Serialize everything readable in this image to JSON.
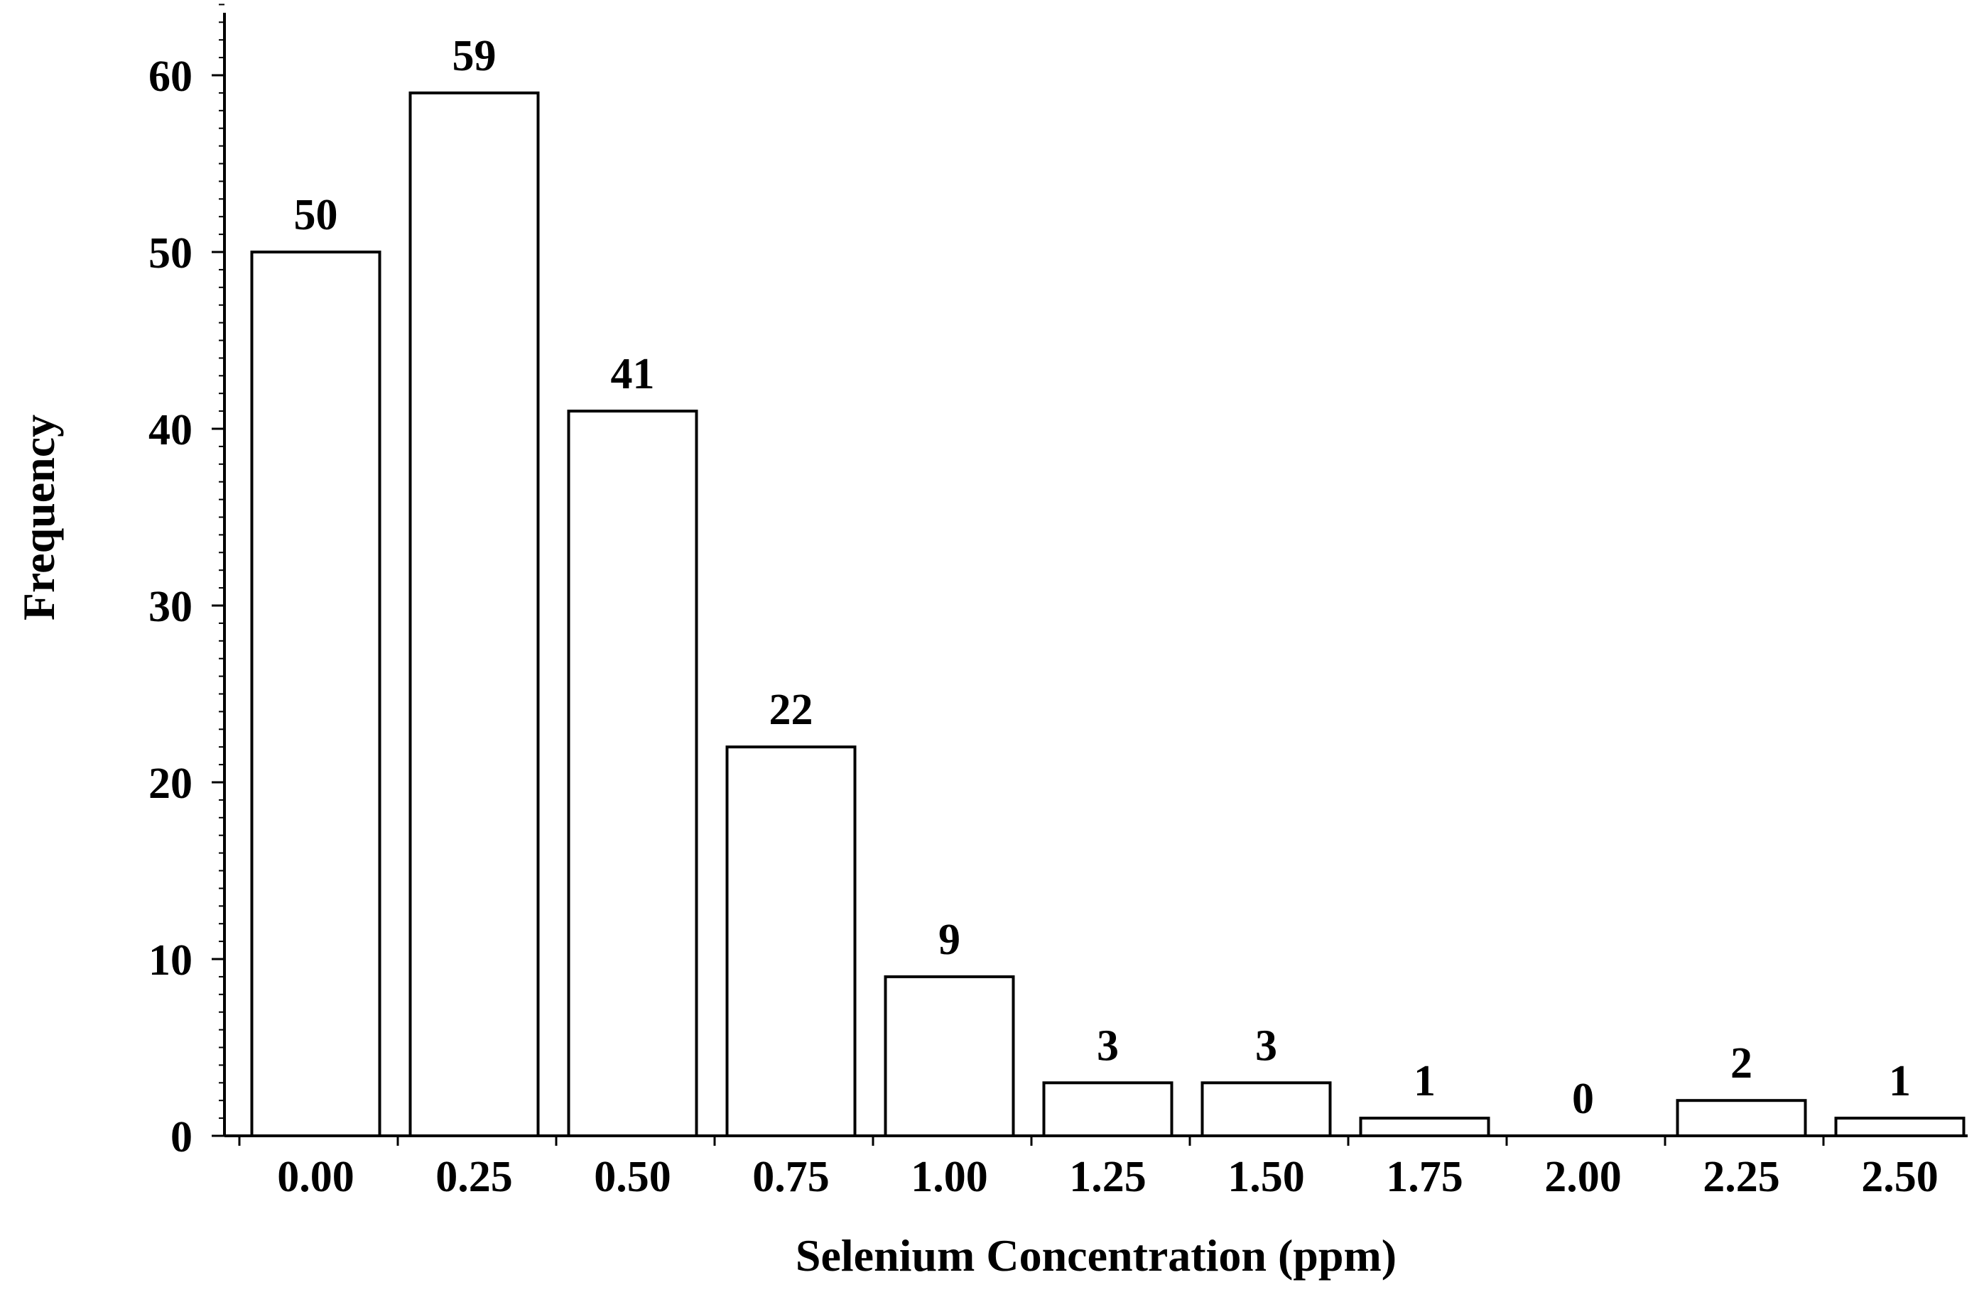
{
  "chart_data": {
    "type": "bar",
    "categories": [
      "0.00",
      "0.25",
      "0.50",
      "0.75",
      "1.00",
      "1.25",
      "1.50",
      "1.75",
      "2.00",
      "2.25",
      "2.50"
    ],
    "values": [
      50,
      59,
      41,
      22,
      9,
      3,
      3,
      1,
      0,
      2,
      1
    ],
    "data_labels": [
      "50",
      "59",
      "41",
      "22",
      "9",
      "3",
      "3",
      "1",
      "0",
      "2",
      "1"
    ],
    "xlabel": "Selenium Concentration (ppm)",
    "ylabel": "Frequency",
    "ylim": [
      0,
      64
    ],
    "yticks": [
      "0",
      "10",
      "20",
      "30",
      "40",
      "50",
      "60"
    ],
    "grid": false,
    "bar_fill": "#ffffff",
    "bar_edge": "#000000"
  }
}
